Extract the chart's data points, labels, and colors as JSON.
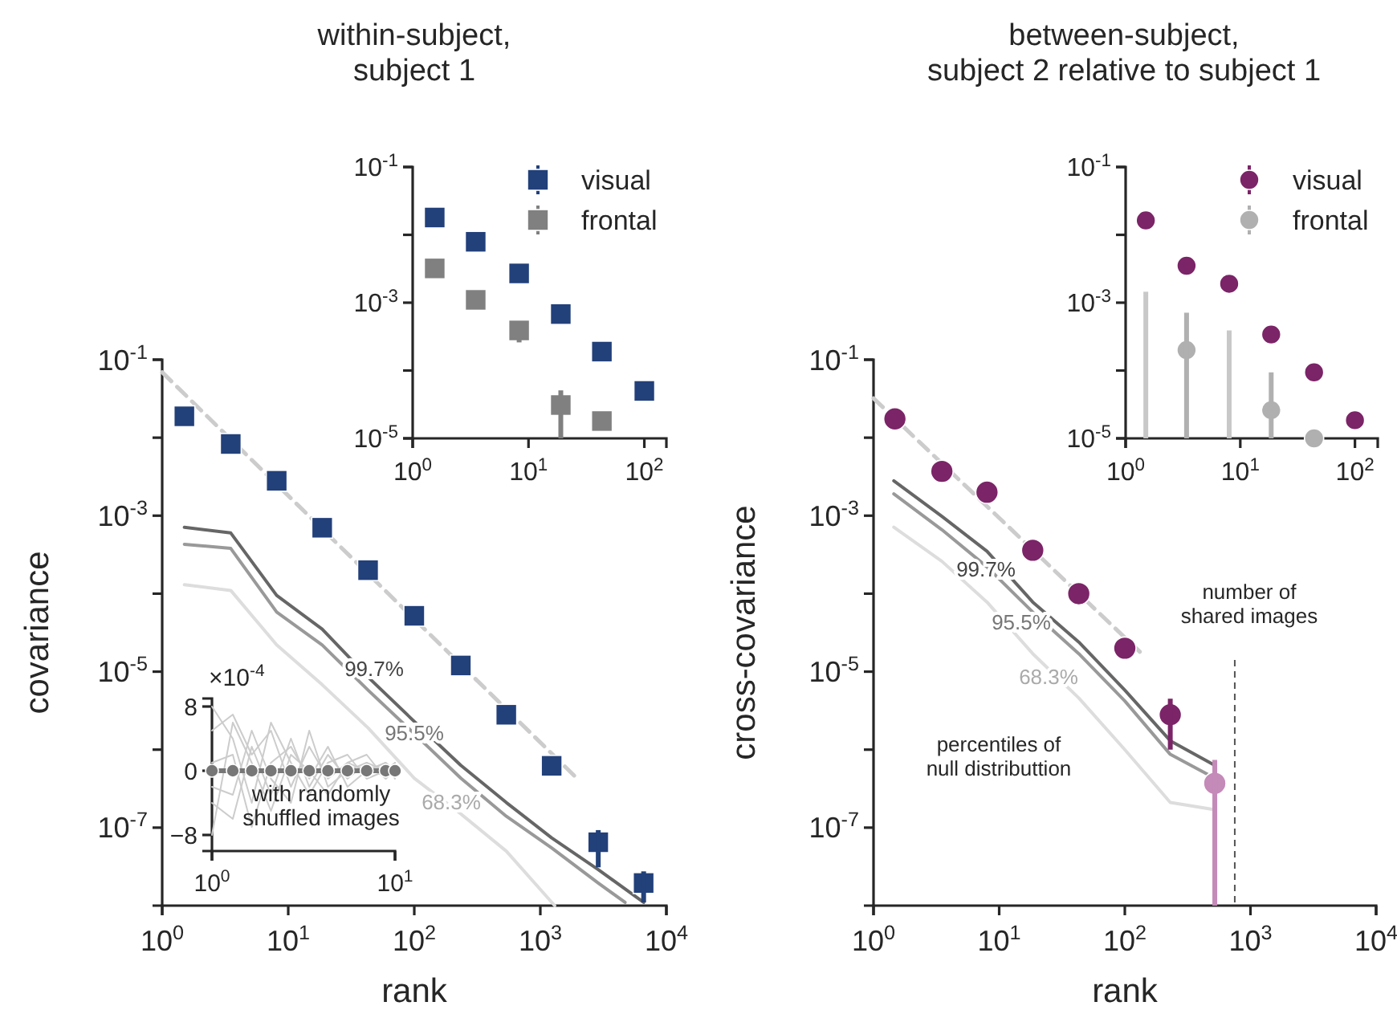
{
  "chart_data": [
    {
      "type": "scatter",
      "title": "within-subject,\nsubject 1",
      "xlabel": "rank",
      "ylabel": "covariance",
      "log": "xy",
      "xlim": [
        1,
        10000
      ],
      "ylim": [
        1e-08,
        0.1
      ],
      "xticks": [
        {
          "value": 1,
          "label": "10$^{0}$"
        },
        {
          "value": 10,
          "label": "10$^{1}$"
        },
        {
          "value": 100,
          "label": "10$^{2}$"
        },
        {
          "value": 1000,
          "label": "10$^{3}$"
        },
        {
          "value": 10000,
          "label": "10$^{4}$"
        }
      ],
      "yticks": [
        {
          "value": 0.1,
          "label": "10$^{-1}$"
        },
        {
          "value": 0.01,
          "label": null
        },
        {
          "value": 0.001,
          "label": "10$^{-3}$"
        },
        {
          "value": 0.0001,
          "label": null
        },
        {
          "value": 1e-05,
          "label": "10$^{-5}$"
        },
        {
          "value": 1e-06,
          "label": null
        },
        {
          "value": 1e-07,
          "label": "10$^{-7}$"
        }
      ],
      "series": [
        {
          "type": "line",
          "color": "#666666",
          "x": [
            1.5,
            3.5,
            8.1,
            18.6,
            43,
            100,
            234,
            537,
            1230,
            2880,
            6600
          ],
          "values": [
            0.00071,
            0.0006,
            9.5e-05,
            3.5e-05,
            8.5e-06,
            2.3e-06,
            6.3e-07,
            2.1e-07,
            7.4e-08,
            2.9e-08,
            1.1e-08
          ]
        },
        {
          "type": "line",
          "color": "#999999",
          "x": [
            1.5,
            3.5,
            8.1,
            18.6,
            43,
            100,
            234,
            537,
            1230,
            2880,
            4700
          ],
          "values": [
            0.00043,
            0.00038,
            5.8e-05,
            2.2e-05,
            5.8e-06,
            1.6e-06,
            4.3e-07,
            1.4e-07,
            5.5e-08,
            1.95e-08,
            1.1e-08
          ]
        },
        {
          "type": "line",
          "color": "#dddddd",
          "x": [
            1.5,
            3.5,
            8.1,
            18.6,
            43,
            100,
            234,
            537,
            1300
          ],
          "values": [
            0.00013,
            0.00011,
            2.2e-05,
            6.8e-06,
            1.9e-06,
            4.3e-07,
            1.5e-07,
            5e-08,
            1e-08
          ]
        },
        {
          "type": "line",
          "color": "#cccccc",
          "line_style": "dashed",
          "x": [
            1,
            1950
          ],
          "values": [
            0.069,
            4.3e-07
          ]
        },
        {
          "marker": "square",
          "color": "#22407a",
          "x": [
            1.5,
            3.5,
            8.1,
            18.6,
            43,
            100,
            234,
            537,
            1230,
            2880,
            6600
          ],
          "values": [
            0.0188,
            0.0083,
            0.0028,
            0.0007,
            0.0002,
            5.2e-05,
            1.2e-05,
            2.8e-06,
            6.2e-07,
            6.5e-08,
            1.95e-08
          ],
          "errors": [
            null,
            null,
            null,
            null,
            null,
            null,
            null,
            null,
            null,
            [
              3.1e-08,
              9.3e-08
            ],
            [
              1.1e-08,
              2.75e-08
            ]
          ]
        }
      ],
      "annotations": [
        "99.7%",
        "95.5%",
        "68.3%"
      ]
    },
    {
      "type": "scatter",
      "log": "xy",
      "xlim": [
        1,
        155
      ],
      "ylim": [
        1e-05,
        0.1
      ],
      "legend": "top right",
      "marker": "square",
      "xticks": [
        {
          "value": 1,
          "label": "10$^{0}$"
        },
        {
          "value": 10,
          "label": "10$^{1}$"
        },
        {
          "value": 100,
          "label": "10$^{2}$"
        }
      ],
      "yticks": [
        {
          "value": 0.1,
          "label": "10$^{-1}$"
        },
        {
          "value": 0.01,
          "label": null
        },
        {
          "value": 0.001,
          "label": "10$^{-3}$"
        },
        {
          "value": 0.0001,
          "label": null
        },
        {
          "value": 1e-05,
          "label": "10$^{-5}$"
        }
      ],
      "x": [
        1.55,
        3.5,
        8.3,
        19,
        43,
        100
      ],
      "series": [
        {
          "name": "visual",
          "color": "#22407a",
          "values": [
            0.018,
            0.0079,
            0.0027,
            0.00068,
            0.00019,
            5e-05
          ]
        },
        {
          "name": "frontal",
          "color": "#808080",
          "values": [
            0.0032,
            0.0011,
            0.00039,
            3.1e-05,
            1.8e-05,
            null
          ],
          "errors": [
            null,
            null,
            [
              0.00026,
              0.00039
            ],
            [
              1e-05,
              5.1e-05
            ],
            null,
            null
          ]
        }
      ]
    },
    {
      "type": "line",
      "log": "x",
      "ylabel": "×10$^{-4}$",
      "xlim": [
        1,
        10
      ],
      "ylim": [
        -10,
        9
      ],
      "xticks": [
        {
          "value": 1,
          "label": "10$^{0}$"
        },
        {
          "value": 10,
          "label": "10$^{1}$"
        }
      ],
      "yticks": [
        8,
        0,
        -8
      ],
      "x": [
        1,
        1.3,
        1.65,
        2.1,
        2.7,
        3.4,
        4.3,
        5.5,
        7,
        8.9,
        10
      ],
      "series": [
        {
          "color": "#cccccc",
          "values": [
            5,
            7,
            2,
            5,
            -2,
            3,
            -1,
            1,
            0,
            1,
            0
          ]
        },
        {
          "color": "#cccccc",
          "values": [
            -4,
            -6,
            3,
            -3,
            4,
            -2,
            2,
            -1,
            1,
            0,
            1
          ]
        },
        {
          "color": "#cccccc",
          "values": [
            8,
            4,
            -4,
            6,
            1,
            -3,
            1,
            2,
            -1,
            0,
            0
          ]
        },
        {
          "color": "#cccccc",
          "values": [
            -2,
            -3,
            5,
            -1,
            -4,
            5,
            -2,
            0,
            1,
            -1,
            0
          ]
        },
        {
          "color": "#cccccc",
          "values": [
            1,
            2,
            -7,
            1,
            3,
            -1,
            3,
            -2,
            0,
            1,
            -1
          ]
        },
        {
          "color": "#cccccc",
          "values": [
            -8,
            6,
            1,
            -5,
            2,
            0,
            -3,
            1,
            2,
            -1,
            1
          ]
        },
        {
          "color": "#777777",
          "marker": "circle",
          "x": [
            1,
            1.3,
            1.65,
            2.1,
            2.7,
            3.4,
            4.3,
            5.5,
            7,
            8.9,
            10
          ],
          "values": [
            0,
            0,
            0,
            0,
            0,
            0,
            0,
            0,
            0,
            0,
            0
          ]
        }
      ],
      "annotations": [
        "with randomly\nshuffled images"
      ]
    },
    {
      "type": "scatter",
      "title": "between-subject,\nsubject 2 relative to subject 1",
      "xlabel": "rank",
      "ylabel": "cross-covariance",
      "log": "xy",
      "xlim": [
        1,
        10000
      ],
      "ylim": [
        1e-08,
        0.1
      ],
      "xticks": [
        {
          "value": 1,
          "label": "10$^{0}$"
        },
        {
          "value": 10,
          "label": "10$^{1}$"
        },
        {
          "value": 100,
          "label": "10$^{2}$"
        },
        {
          "value": 1000,
          "label": "10$^{3}$"
        },
        {
          "value": 10000,
          "label": "10$^{4}$"
        }
      ],
      "yticks": [
        {
          "value": 0.1,
          "label": "10$^{-1}$"
        },
        {
          "value": 0.01,
          "label": null
        },
        {
          "value": 0.001,
          "label": "10$^{-3}$"
        },
        {
          "value": 0.0001,
          "label": null
        },
        {
          "value": 1e-05,
          "label": "10$^{-5}$"
        },
        {
          "value": 1e-06,
          "label": null
        },
        {
          "value": 1e-07,
          "label": "10$^{-7}$"
        }
      ],
      "series": [
        {
          "type": "line",
          "color": "#666666",
          "x": [
            1.45,
            3.5,
            8,
            18.5,
            43,
            100,
            230,
            520
          ],
          "values": [
            0.0028,
            0.00098,
            0.00035,
            7.8e-05,
            2.4e-05,
            5.8e-06,
            1.3e-06,
            6.3e-07
          ]
        },
        {
          "type": "line",
          "color": "#999999",
          "x": [
            1.45,
            3.5,
            8,
            18.5,
            43,
            100,
            230,
            520
          ],
          "values": [
            0.0019,
            0.00066,
            0.00022,
            5.8e-05,
            1.7e-05,
            4.2e-06,
            8.7e-07,
            4.3e-07
          ]
        },
        {
          "type": "line",
          "color": "#dddddd",
          "x": [
            1.45,
            3.5,
            8,
            18.5,
            43,
            100,
            230,
            520
          ],
          "values": [
            0.00071,
            0.00026,
            7.8e-05,
            1.7e-05,
            4.6e-06,
            1e-06,
            2.1e-07,
            1.7e-07
          ]
        },
        {
          "type": "line",
          "color": "#cccccc",
          "line_style": "dashed",
          "x": [
            1,
            145
          ],
          "values": [
            0.032,
            1.55e-05
          ]
        },
        {
          "marker": "circle",
          "color": "#7b2467",
          "x": [
            1.48,
            3.5,
            8,
            18.5,
            43,
            100,
            230
          ],
          "values": [
            0.0174,
            0.0037,
            0.002,
            0.00036,
            0.0001,
            2e-05,
            2.8e-06
          ],
          "errors": [
            null,
            null,
            null,
            null,
            null,
            null,
            [
              1e-06,
              4.5e-06
            ]
          ]
        },
        {
          "marker": "circle",
          "color": "#c48ab8",
          "x": [
            520
          ],
          "values": [
            3.7e-07
          ],
          "errors": [
            [
              1e-08,
              7.4e-07
            ]
          ]
        }
      ],
      "ref_lines": [
        {
          "axis": "x",
          "value": 750,
          "label": "number of\nshared images",
          "color": "#555555",
          "line_style": "dashed"
        }
      ],
      "annotations": [
        "99.7%",
        "95.5%",
        "68.3%",
        "percentiles of\nnull distributtion"
      ]
    },
    {
      "type": "scatter",
      "log": "xy",
      "xlim": [
        1,
        158
      ],
      "ylim": [
        1e-05,
        0.1
      ],
      "legend": "top right",
      "marker": "circle",
      "xticks": [
        {
          "value": 1,
          "label": "10$^{0}$"
        },
        {
          "value": 10,
          "label": "10$^{1}$"
        },
        {
          "value": 100,
          "label": "10$^{2}$"
        }
      ],
      "yticks": [
        {
          "value": 0.1,
          "label": "10$^{-1}$"
        },
        {
          "value": 0.01,
          "label": null
        },
        {
          "value": 0.001,
          "label": "10$^{-3}$"
        },
        {
          "value": 0.0001,
          "label": null
        },
        {
          "value": 1e-05,
          "label": "10$^{-5}$"
        }
      ],
      "x": [
        1.5,
        3.4,
        8,
        18.6,
        44,
        100
      ],
      "series": [
        {
          "name": "visual",
          "color": "#7b2467",
          "values": [
            0.0163,
            0.0035,
            0.0019,
            0.00034,
            9.4e-05,
            1.85e-05
          ]
        },
        {
          "name": "frontal",
          "color": "#b0b0b0",
          "values": [
            null,
            0.0002,
            null,
            2.6e-05,
            1e-05,
            null
          ],
          "errors": [
            null,
            [
              1e-05,
              0.00071
            ],
            null,
            [
              1e-05,
              9.4e-05
            ],
            null,
            null
          ]
        },
        {
          "type": "bar",
          "color": "#c8c8c8",
          "x": [
            1.5,
            8
          ],
          "values": [
            0.00145,
            0.00039
          ]
        }
      ]
    }
  ]
}
